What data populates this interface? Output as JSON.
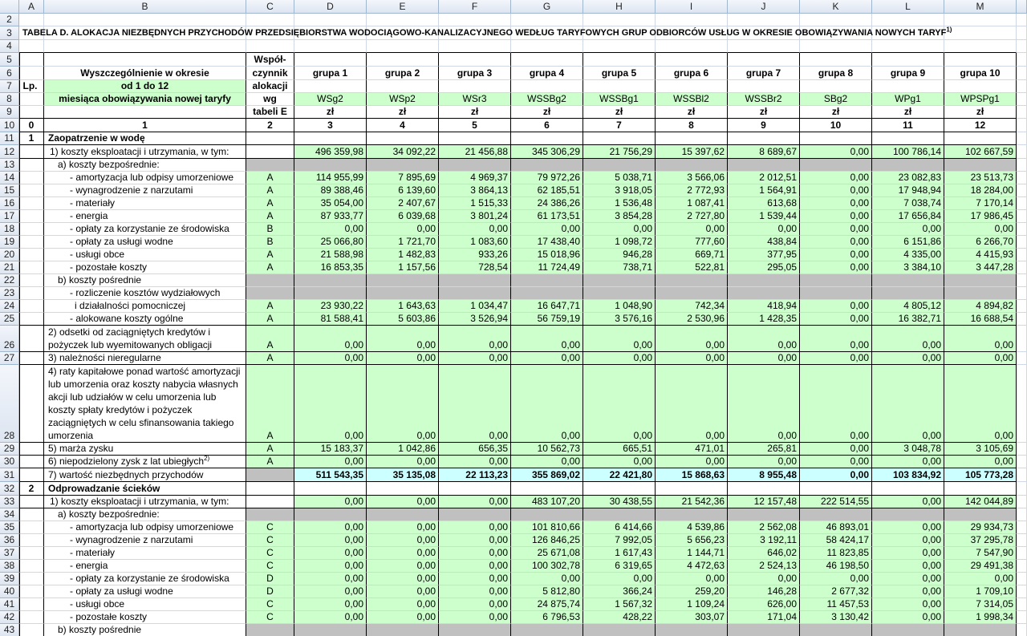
{
  "column_headers": [
    "A",
    "B",
    "C",
    "D",
    "E",
    "F",
    "G",
    "H",
    "I",
    "J",
    "K",
    "L",
    "M"
  ],
  "row_numbers": [
    "2",
    "3",
    "4",
    "5",
    "6",
    "7",
    "8",
    "9",
    "10",
    "11",
    "12",
    "13",
    "14",
    "15",
    "16",
    "17",
    "18",
    "19",
    "20",
    "21",
    "22",
    "23",
    "24",
    "25",
    "26",
    "27",
    "28",
    "29",
    "30",
    "31",
    "32",
    "33",
    "34",
    "35",
    "36",
    "37",
    "38",
    "39",
    "40",
    "41",
    "42",
    "43"
  ],
  "title": {
    "text": "TABELA D. ALOKACJA NIEZBĘDNYCH PRZYCHODÓW PRZEDSIĘBIORSTWA WODOCIĄGOWO-KANALIZACYJNEGO WEDŁUG TARYFOWYCH GRUP ODBIORCÓW USŁUG W OKRESIE OBOWIĄZYWANIA NOWYCH TARYF",
    "note": "1)"
  },
  "header": {
    "lp": "Lp.",
    "description": [
      "Wyszczególnienie w okresie",
      "od 1 do 12",
      "miesiąca obowiązywania nowej taryfy"
    ],
    "factor": [
      "Współ-",
      "czynnik",
      "alokacji",
      "wg",
      "tabeli E"
    ],
    "groups": [
      "grupa 1",
      "grupa 2",
      "grupa 3",
      "grupa 4",
      "grupa 5",
      "grupa 6",
      "grupa 7",
      "grupa 8",
      "grupa 9",
      "grupa 10"
    ],
    "codes": [
      "WSg2",
      "WSp2",
      "WSr3",
      "WSSBg2",
      "WSSBg1",
      "WSSBl2",
      "WSSBr2",
      "SBg2",
      "WPg1",
      "WPSPg1"
    ],
    "units": [
      "zł",
      "zł",
      "zł",
      "zł",
      "zł",
      "zł",
      "zł",
      "zł",
      "zł",
      "zł"
    ]
  },
  "column_index": [
    "0",
    "1",
    "2",
    "3",
    "4",
    "5",
    "6",
    "7",
    "8",
    "9",
    "10",
    "11",
    "12"
  ],
  "rows": [
    {
      "lp": "1",
      "label": "Zaopatrzenie w wodę"
    },
    {
      "label": "1) koszty eksploatacji i utrzymania, w tym:",
      "values": [
        "496 359,98",
        "34 092,22",
        "21 456,88",
        "345 306,29",
        "21 756,29",
        "15 397,62",
        "8 689,67",
        "0,00",
        "100 786,14",
        "102 667,59"
      ]
    },
    {
      "label": "a) koszty bezpośrednie:"
    },
    {
      "label": "- amortyzacja lub odpisy umorzeniowe",
      "factor": "A",
      "values": [
        "114 955,99",
        "7 895,69",
        "4 969,37",
        "79 972,26",
        "5 038,71",
        "3 566,06",
        "2 012,51",
        "0,00",
        "23 082,83",
        "23 513,73"
      ]
    },
    {
      "label": "- wynagrodzenie z narzutami",
      "factor": "A",
      "values": [
        "89 388,46",
        "6 139,60",
        "3 864,13",
        "62 185,51",
        "3 918,05",
        "2 772,93",
        "1 564,91",
        "0,00",
        "17 948,94",
        "18 284,00"
      ]
    },
    {
      "label": "- materiały",
      "factor": "A",
      "values": [
        "35 054,00",
        "2 407,67",
        "1 515,33",
        "24 386,26",
        "1 536,48",
        "1 087,41",
        "613,68",
        "0,00",
        "7 038,74",
        "7 170,14"
      ]
    },
    {
      "label": "- energia",
      "factor": "A",
      "values": [
        "87 933,77",
        "6 039,68",
        "3 801,24",
        "61 173,51",
        "3 854,28",
        "2 727,80",
        "1 539,44",
        "0,00",
        "17 656,84",
        "17 986,45"
      ]
    },
    {
      "label": "- opłaty za korzystanie ze środowiska",
      "factor": "B",
      "values": [
        "0,00",
        "0,00",
        "0,00",
        "0,00",
        "0,00",
        "0,00",
        "0,00",
        "0,00",
        "0,00",
        "0,00"
      ]
    },
    {
      "label": "- opłaty za usługi wodne",
      "factor": "B",
      "values": [
        "25 066,80",
        "1 721,70",
        "1 083,60",
        "17 438,40",
        "1 098,72",
        "777,60",
        "438,84",
        "0,00",
        "6 151,86",
        "6 266,70"
      ]
    },
    {
      "label": "- usługi obce",
      "factor": "A",
      "values": [
        "21 588,98",
        "1 482,83",
        "933,26",
        "15 018,96",
        "946,28",
        "669,71",
        "377,95",
        "0,00",
        "4 335,00",
        "4 415,93"
      ]
    },
    {
      "label": "- pozostałe koszty",
      "factor": "A",
      "values": [
        "16 853,35",
        "1 157,56",
        "728,54",
        "11 724,49",
        "738,71",
        "522,81",
        "295,05",
        "0,00",
        "3 384,10",
        "3 447,28"
      ]
    },
    {
      "label": "b) koszty pośrednie"
    },
    {
      "label": "- rozliczenie kosztów wydziałowych"
    },
    {
      "label": "i działalności pomocniczej",
      "factor": "A",
      "values": [
        "23 930,22",
        "1 643,63",
        "1 034,47",
        "16 647,71",
        "1 048,90",
        "742,34",
        "418,94",
        "0,00",
        "4 805,12",
        "4 894,82"
      ]
    },
    {
      "label": "- alokowane koszty ogólne",
      "factor": "A",
      "values": [
        "81 588,41",
        "5 603,86",
        "3 526,94",
        "56 759,19",
        "3 576,16",
        "2 530,96",
        "1 428,35",
        "0,00",
        "16 382,71",
        "16 688,54"
      ]
    },
    {
      "label": [
        "2) odsetki od zaciągniętych kredytów i",
        "pożyczek lub wyemitowanych obligacji"
      ],
      "factor": "A",
      "values": [
        "0,00",
        "0,00",
        "0,00",
        "0,00",
        "0,00",
        "0,00",
        "0,00",
        "0,00",
        "0,00",
        "0,00"
      ]
    },
    {
      "label": "3) należności nieregularne",
      "factor": "A",
      "values": [
        "0,00",
        "0,00",
        "0,00",
        "0,00",
        "0,00",
        "0,00",
        "0,00",
        "0,00",
        "0,00",
        "0,00"
      ]
    },
    {
      "label": [
        "4) raty kapitałowe ponad wartość amortyzacji",
        "lub umorzenia oraz koszty nabycia własnych",
        "akcji lub udziałów w celu umorzenia lub",
        "koszty spłaty kredytów i pożyczek",
        "zaciągniętych w celu sfinansowania takiego",
        "umorzenia"
      ],
      "factor": "A",
      "values": [
        "0,00",
        "0,00",
        "0,00",
        "0,00",
        "0,00",
        "0,00",
        "0,00",
        "0,00",
        "0,00",
        "0,00"
      ]
    },
    {
      "label": "5) marża zysku",
      "factor": "A",
      "values": [
        "15 183,37",
        "1 042,86",
        "656,35",
        "10 562,73",
        "665,51",
        "471,01",
        "265,81",
        "0,00",
        "3 048,78",
        "3 105,69"
      ]
    },
    {
      "label": "6) niepodzielony zysk z lat ubiegłych",
      "note": "2)",
      "factor": "A",
      "values": [
        "0,00",
        "0,00",
        "0,00",
        "0,00",
        "0,00",
        "0,00",
        "0,00",
        "0,00",
        "0,00",
        "0,00"
      ]
    },
    {
      "label": "7) wartość niezbędnych przychodów",
      "values": [
        "511 543,35",
        "35 135,08",
        "22 113,23",
        "355 869,02",
        "22 421,80",
        "15 868,63",
        "8 955,48",
        "0,00",
        "103 834,92",
        "105 773,28"
      ]
    },
    {
      "lp": "2",
      "label": "Odprowadzanie ścieków"
    },
    {
      "label": "1) koszty eksploatacji i utrzymania, w tym:",
      "values": [
        "0,00",
        "0,00",
        "0,00",
        "483 107,20",
        "30 438,55",
        "21 542,36",
        "12 157,48",
        "222 514,55",
        "0,00",
        "142 044,89"
      ]
    },
    {
      "label": "a) koszty bezpośrednie:"
    },
    {
      "label": "- amortyzacja lub odpisy umorzeniowe",
      "factor": "C",
      "values": [
        "0,00",
        "0,00",
        "0,00",
        "101 810,66",
        "6 414,66",
        "4 539,86",
        "2 562,08",
        "46 893,01",
        "0,00",
        "29 934,73"
      ]
    },
    {
      "label": "- wynagrodzenie z narzutami",
      "factor": "C",
      "values": [
        "0,00",
        "0,00",
        "0,00",
        "126 846,25",
        "7 992,05",
        "5 656,23",
        "3 192,11",
        "58 424,17",
        "0,00",
        "37 295,78"
      ]
    },
    {
      "label": "- materiały",
      "factor": "C",
      "values": [
        "0,00",
        "0,00",
        "0,00",
        "25 671,08",
        "1 617,43",
        "1 144,71",
        "646,02",
        "11 823,85",
        "0,00",
        "7 547,90"
      ]
    },
    {
      "label": "- energia",
      "factor": "C",
      "values": [
        "0,00",
        "0,00",
        "0,00",
        "100 302,78",
        "6 319,65",
        "4 472,63",
        "2 524,13",
        "46 198,50",
        "0,00",
        "29 491,38"
      ]
    },
    {
      "label": "- opłaty za korzystanie ze środowiska",
      "factor": "D",
      "values": [
        "0,00",
        "0,00",
        "0,00",
        "0,00",
        "0,00",
        "0,00",
        "0,00",
        "0,00",
        "0,00",
        "0,00"
      ]
    },
    {
      "label": "- opłaty za usługi wodne",
      "factor": "D",
      "values": [
        "0,00",
        "0,00",
        "0,00",
        "5 812,80",
        "366,24",
        "259,20",
        "146,28",
        "2 677,32",
        "0,00",
        "1 709,10"
      ]
    },
    {
      "label": "- usługi obce",
      "factor": "C",
      "values": [
        "0,00",
        "0,00",
        "0,00",
        "24 875,74",
        "1 567,32",
        "1 109,24",
        "626,00",
        "11 457,53",
        "0,00",
        "7 314,05"
      ]
    },
    {
      "label": "- pozostałe koszty",
      "factor": "C",
      "values": [
        "0,00",
        "0,00",
        "0,00",
        "6 796,53",
        "428,22",
        "303,07",
        "171,04",
        "3 130,42",
        "0,00",
        "1 998,34"
      ]
    },
    {
      "label": "b) koszty pośrednie"
    }
  ]
}
